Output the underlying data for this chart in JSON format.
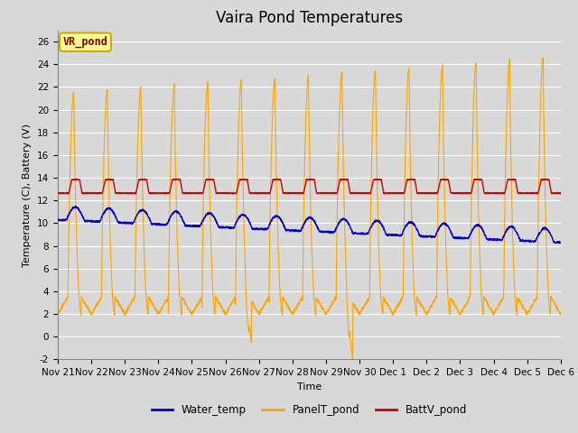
{
  "title": "Vaira Pond Temperatures",
  "ylabel": "Temperature (C), Battery (V)",
  "xlabel": "Time",
  "ylim": [
    -2,
    27
  ],
  "yticks": [
    -2,
    0,
    2,
    4,
    6,
    8,
    10,
    12,
    14,
    16,
    18,
    20,
    22,
    24,
    26
  ],
  "bg_color": "#d8d8d8",
  "grid_color": "white",
  "title_fontsize": 12,
  "label_fontsize": 8,
  "tick_fontsize": 7.5,
  "annotation_text": "VR_pond",
  "annotation_color": "#8b0000",
  "annotation_bg": "#ffff99",
  "annotation_border": "#ccaa00",
  "line_colors": {
    "Water_temp": "#0000cc",
    "PanelT_pond": "#ffa500",
    "BattV_pond": "#cc0000"
  },
  "x_tick_labels": [
    "Nov 21",
    "Nov 22",
    "Nov 23",
    "Nov 24",
    "Nov 25",
    "Nov 26",
    "Nov 27",
    "Nov 28",
    "Nov 29",
    "Nov 30",
    "Dec 1",
    "Dec 2",
    "Dec 3",
    "Dec 4",
    "Dec 5",
    "Dec 6"
  ],
  "n_days": 15,
  "pts_per_day": 144
}
